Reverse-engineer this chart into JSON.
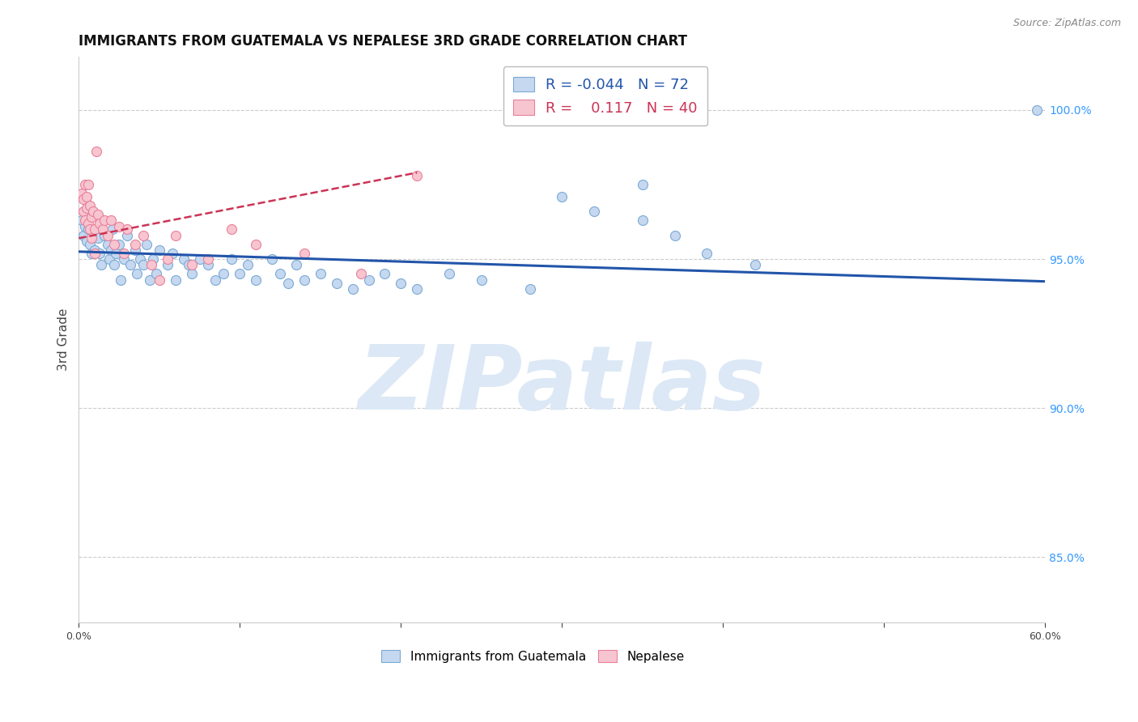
{
  "title": "IMMIGRANTS FROM GUATEMALA VS NEPALESE 3RD GRADE CORRELATION CHART",
  "source": "Source: ZipAtlas.com",
  "ylabel": "3rd Grade",
  "ytick_values": [
    0.85,
    0.9,
    0.95,
    1.0
  ],
  "xlim": [
    0.0,
    0.6
  ],
  "ylim": [
    0.828,
    1.018
  ],
  "legend_blue_R": "-0.044",
  "legend_blue_N": "72",
  "legend_pink_R": "0.117",
  "legend_pink_N": "40",
  "blue_scatter_x": [
    0.002,
    0.003,
    0.004,
    0.005,
    0.006,
    0.007,
    0.008,
    0.009,
    0.01,
    0.011,
    0.012,
    0.013,
    0.014,
    0.015,
    0.016,
    0.018,
    0.019,
    0.02,
    0.021,
    0.022,
    0.023,
    0.025,
    0.026,
    0.028,
    0.03,
    0.032,
    0.035,
    0.036,
    0.038,
    0.04,
    0.042,
    0.044,
    0.046,
    0.048,
    0.05,
    0.055,
    0.058,
    0.06,
    0.065,
    0.068,
    0.07,
    0.075,
    0.08,
    0.085,
    0.09,
    0.095,
    0.1,
    0.105,
    0.11,
    0.12,
    0.125,
    0.13,
    0.135,
    0.14,
    0.15,
    0.16,
    0.17,
    0.18,
    0.19,
    0.2,
    0.21,
    0.23,
    0.25,
    0.28,
    0.3,
    0.32,
    0.35,
    0.37,
    0.39,
    0.42,
    0.595,
    0.35
  ],
  "blue_scatter_y": [
    0.963,
    0.958,
    0.961,
    0.956,
    0.96,
    0.955,
    0.952,
    0.958,
    0.953,
    0.96,
    0.957,
    0.952,
    0.948,
    0.963,
    0.958,
    0.955,
    0.95,
    0.953,
    0.96,
    0.948,
    0.952,
    0.955,
    0.943,
    0.95,
    0.958,
    0.948,
    0.953,
    0.945,
    0.95,
    0.948,
    0.955,
    0.943,
    0.95,
    0.945,
    0.953,
    0.948,
    0.952,
    0.943,
    0.95,
    0.948,
    0.945,
    0.95,
    0.948,
    0.943,
    0.945,
    0.95,
    0.945,
    0.948,
    0.943,
    0.95,
    0.945,
    0.942,
    0.948,
    0.943,
    0.945,
    0.942,
    0.94,
    0.943,
    0.945,
    0.942,
    0.94,
    0.945,
    0.943,
    0.94,
    0.971,
    0.966,
    0.963,
    0.958,
    0.952,
    0.948,
    1.0,
    0.975
  ],
  "pink_scatter_x": [
    0.002,
    0.003,
    0.003,
    0.004,
    0.004,
    0.005,
    0.005,
    0.006,
    0.006,
    0.007,
    0.007,
    0.008,
    0.008,
    0.009,
    0.01,
    0.01,
    0.011,
    0.012,
    0.013,
    0.015,
    0.016,
    0.018,
    0.02,
    0.022,
    0.025,
    0.028,
    0.03,
    0.035,
    0.04,
    0.045,
    0.05,
    0.055,
    0.06,
    0.07,
    0.08,
    0.095,
    0.11,
    0.14,
    0.175,
    0.21
  ],
  "pink_scatter_y": [
    0.972,
    0.97,
    0.966,
    0.975,
    0.963,
    0.971,
    0.967,
    0.975,
    0.962,
    0.968,
    0.96,
    0.964,
    0.957,
    0.966,
    0.96,
    0.952,
    0.986,
    0.965,
    0.962,
    0.96,
    0.963,
    0.958,
    0.963,
    0.955,
    0.961,
    0.952,
    0.96,
    0.955,
    0.958,
    0.948,
    0.943,
    0.95,
    0.958,
    0.948,
    0.95,
    0.96,
    0.955,
    0.952,
    0.945,
    0.978
  ],
  "blue_trend_x": [
    0.0,
    0.6
  ],
  "blue_trend_y": [
    0.9525,
    0.9425
  ],
  "pink_trend_x": [
    0.0,
    0.21
  ],
  "pink_trend_y": [
    0.957,
    0.979
  ],
  "blue_color": "#c5d8f0",
  "blue_edge_color": "#7baad4",
  "pink_color": "#f7c5d0",
  "pink_edge_color": "#e8809a",
  "blue_line_color": "#2255aa",
  "pink_line_color": "#cc3355",
  "watermark_color": "#dce8f5",
  "background_color": "#ffffff",
  "grid_color": "#cccccc",
  "title_color": "#111111",
  "right_axis_tick_color": "#3399ff",
  "marker_size": 75
}
